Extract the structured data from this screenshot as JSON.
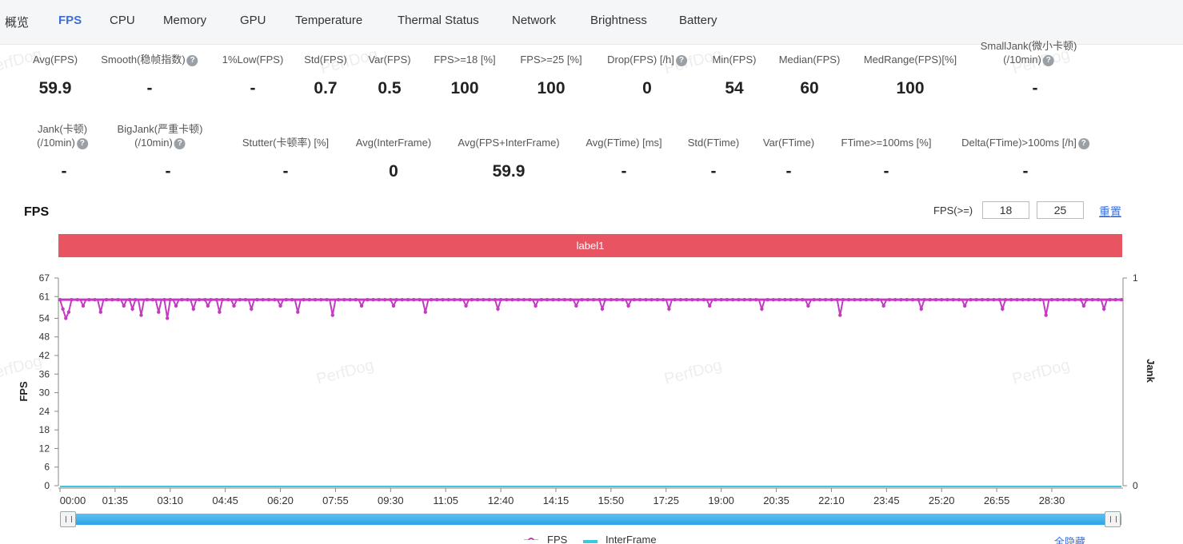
{
  "tabs": [
    "概览",
    "FPS",
    "CPU",
    "Memory",
    "GPU",
    "Temperature",
    "Thermal Status",
    "Network",
    "Brightness",
    "Battery"
  ],
  "active_tab": "FPS",
  "metrics_row1": [
    {
      "label": "Avg(FPS)",
      "value": "59.9"
    },
    {
      "label": "Smooth(稳帧指数)",
      "value": "-",
      "help": "?"
    },
    {
      "label": "1%Low(FPS)",
      "value": "-"
    },
    {
      "label": "Std(FPS)",
      "value": "0.7"
    },
    {
      "label": "Var(FPS)",
      "value": "0.5"
    },
    {
      "label": "FPS>=18 [%]",
      "value": "100"
    },
    {
      "label": "FPS>=25 [%]",
      "value": "100"
    },
    {
      "label": "Drop(FPS) [/h]",
      "value": "0",
      "help": "?"
    },
    {
      "label": "Min(FPS)",
      "value": "54"
    },
    {
      "label": "Median(FPS)",
      "value": "60"
    },
    {
      "label": "MedRange(FPS)[%]",
      "value": "100"
    },
    {
      "label": "SmallJank(微小卡顿)",
      "label2": "(/10min)",
      "value": "-",
      "help": "?"
    }
  ],
  "metrics_row2": [
    {
      "label": "Jank(卡顿)",
      "label2": "(/10min)",
      "value": "-",
      "help": "?"
    },
    {
      "label": "BigJank(严重卡顿)",
      "label2": "(/10min)",
      "value": "-",
      "help": "?"
    },
    {
      "label": "Stutter(卡顿率) [%]",
      "value": "-"
    },
    {
      "label": "Avg(InterFrame)",
      "value": "0"
    },
    {
      "label": "Avg(FPS+InterFrame)",
      "value": "59.9"
    },
    {
      "label": "Avg(FTime) [ms]",
      "value": "-"
    },
    {
      "label": "Std(FTime)",
      "value": "-"
    },
    {
      "label": "Var(FTime)",
      "value": "-"
    },
    {
      "label": "FTime>=100ms [%]",
      "value": "-"
    },
    {
      "label": "Delta(FTime)>100ms [/h]",
      "value": "-",
      "help": "?"
    }
  ],
  "watermark": "PerfDog",
  "chart_section": {
    "title": "FPS",
    "threshold_label": "FPS(>=)",
    "threshold_1": "18",
    "threshold_2": "25",
    "reset_label": "重置",
    "label_band": "label1",
    "hide_all_label": "全隐藏"
  },
  "colors": {
    "accent": "#3b6fd6",
    "fps_series": "#c23bc0",
    "interframe_series": "#3cc8e0",
    "label_band": "#e85462",
    "slider": "#3aaee8"
  },
  "chart_data": {
    "type": "line",
    "title": "FPS",
    "ylabel": "FPS",
    "y2label": "Jank",
    "ylim": [
      0,
      67
    ],
    "y_ticks": [
      "67",
      "61",
      "54",
      "48",
      "42",
      "36",
      "30",
      "24",
      "18",
      "12",
      "6",
      "0"
    ],
    "y2lim": [
      0,
      1
    ],
    "y2_ticks": [
      "1",
      "0"
    ],
    "x_ticks": [
      "00:00",
      "01:35",
      "03:10",
      "04:45",
      "06:20",
      "07:55",
      "09:30",
      "11:05",
      "12:40",
      "14:15",
      "15:50",
      "17:25",
      "19:00",
      "20:35",
      "22:10",
      "23:45",
      "25:20",
      "26:55",
      "28:30"
    ],
    "x_range_seconds": [
      0,
      1830
    ],
    "legend": [
      "FPS",
      "InterFrame"
    ],
    "series": [
      {
        "name": "FPS",
        "baseline": 60,
        "dips": [
          {
            "t": 5,
            "fps": 57
          },
          {
            "t": 12,
            "fps": 54
          },
          {
            "t": 15,
            "fps": 56
          },
          {
            "t": 38,
            "fps": 58
          },
          {
            "t": 72,
            "fps": 56
          },
          {
            "t": 110,
            "fps": 58
          },
          {
            "t": 125,
            "fps": 57
          },
          {
            "t": 140,
            "fps": 55
          },
          {
            "t": 170,
            "fps": 56
          },
          {
            "t": 185,
            "fps": 54
          },
          {
            "t": 200,
            "fps": 58
          },
          {
            "t": 230,
            "fps": 57
          },
          {
            "t": 255,
            "fps": 58
          },
          {
            "t": 275,
            "fps": 56
          },
          {
            "t": 300,
            "fps": 58
          },
          {
            "t": 330,
            "fps": 57
          },
          {
            "t": 380,
            "fps": 58
          },
          {
            "t": 410,
            "fps": 56
          },
          {
            "t": 470,
            "fps": 55
          },
          {
            "t": 520,
            "fps": 58
          },
          {
            "t": 575,
            "fps": 58
          },
          {
            "t": 628,
            "fps": 56
          },
          {
            "t": 700,
            "fps": 58
          },
          {
            "t": 755,
            "fps": 57
          },
          {
            "t": 820,
            "fps": 58
          },
          {
            "t": 890,
            "fps": 58
          },
          {
            "t": 935,
            "fps": 57
          },
          {
            "t": 980,
            "fps": 58
          },
          {
            "t": 1050,
            "fps": 57
          },
          {
            "t": 1120,
            "fps": 58
          },
          {
            "t": 1210,
            "fps": 57
          },
          {
            "t": 1290,
            "fps": 58
          },
          {
            "t": 1345,
            "fps": 55
          },
          {
            "t": 1420,
            "fps": 58
          },
          {
            "t": 1485,
            "fps": 57
          },
          {
            "t": 1560,
            "fps": 58
          },
          {
            "t": 1625,
            "fps": 57
          },
          {
            "t": 1700,
            "fps": 55
          },
          {
            "t": 1765,
            "fps": 58
          },
          {
            "t": 1800,
            "fps": 57
          }
        ]
      },
      {
        "name": "InterFrame",
        "baseline": 0
      }
    ]
  }
}
